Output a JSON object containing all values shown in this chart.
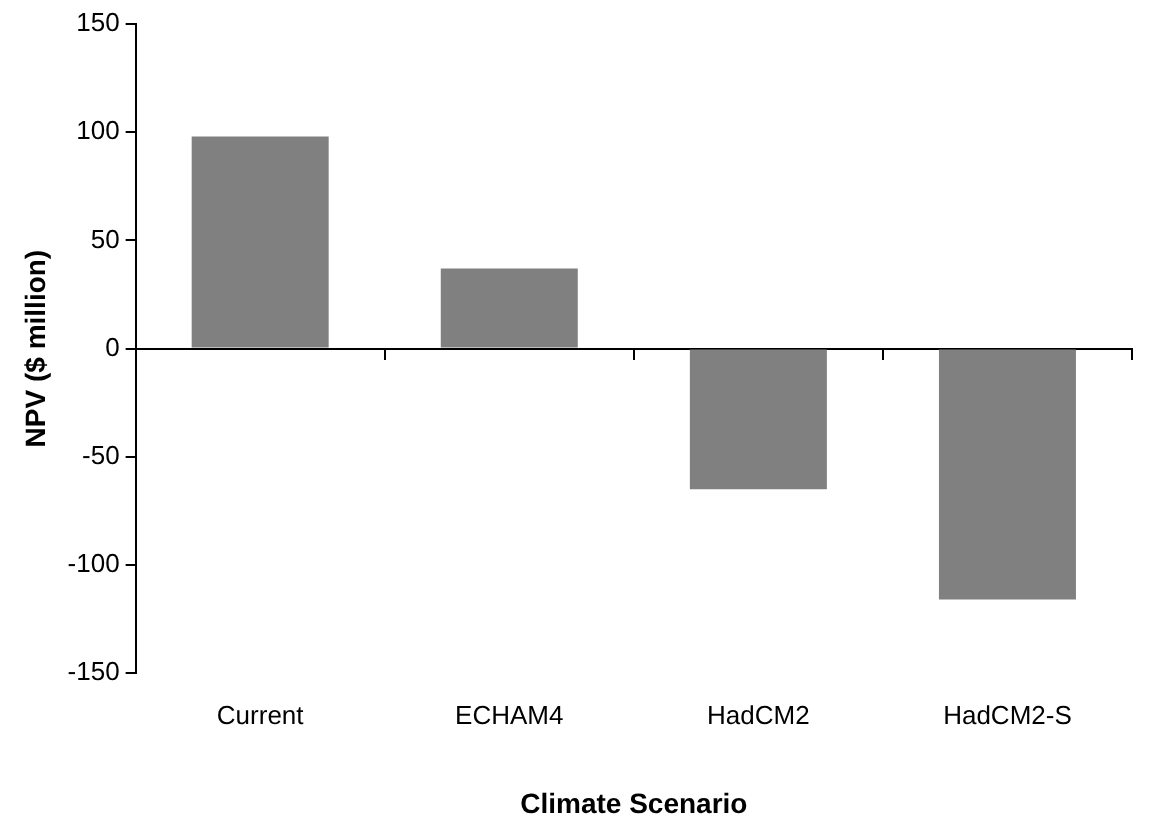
{
  "chart_data": {
    "type": "bar",
    "categories": [
      "Current",
      "ECHAM4",
      "HadCM2",
      "HadCM2-S"
    ],
    "values": [
      98,
      37,
      -65,
      -116
    ],
    "color": "#808080",
    "xlabel": "Climate Scenario",
    "ylabel": "NPV ($ million)",
    "ylim": [
      -150,
      150
    ],
    "yticks": [
      -150,
      -100,
      -50,
      0,
      50,
      100,
      150
    ]
  }
}
